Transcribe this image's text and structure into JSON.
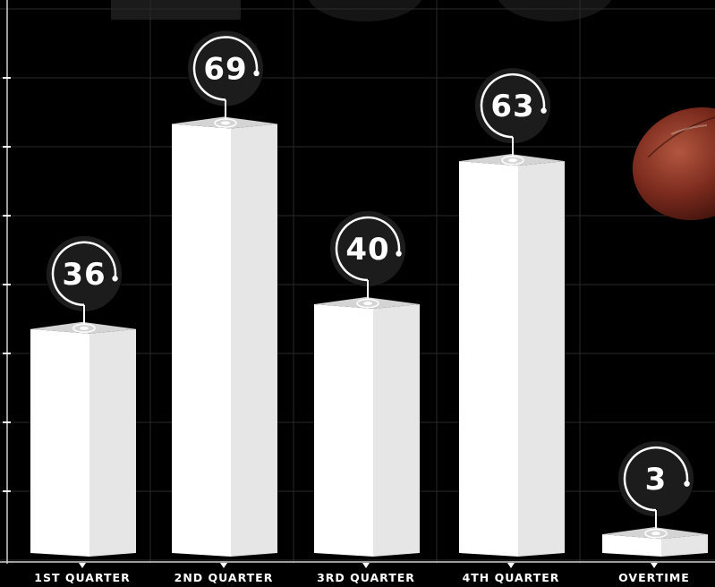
{
  "chart_data": {
    "type": "bar",
    "title": "",
    "xlabel": "",
    "ylabel": "",
    "categories": [
      "1ST QUARTER",
      "2ND QUARTER",
      "3RD QUARTER",
      "4TH QUARTER",
      "OVERTIME"
    ],
    "values": [
      36,
      69,
      40,
      63,
      3
    ],
    "ylim": [
      0,
      80
    ],
    "grid": true,
    "legend": "none",
    "colors": {
      "background": "#000000",
      "bar_front": "#ffffff",
      "bar_side": "#e6e6e6",
      "bar_top": "#d4d4d4",
      "badge": "#1f1f1f",
      "text": "#ffffff",
      "grid": "#2a2a2a"
    },
    "decorations": [
      "football-icon"
    ]
  }
}
